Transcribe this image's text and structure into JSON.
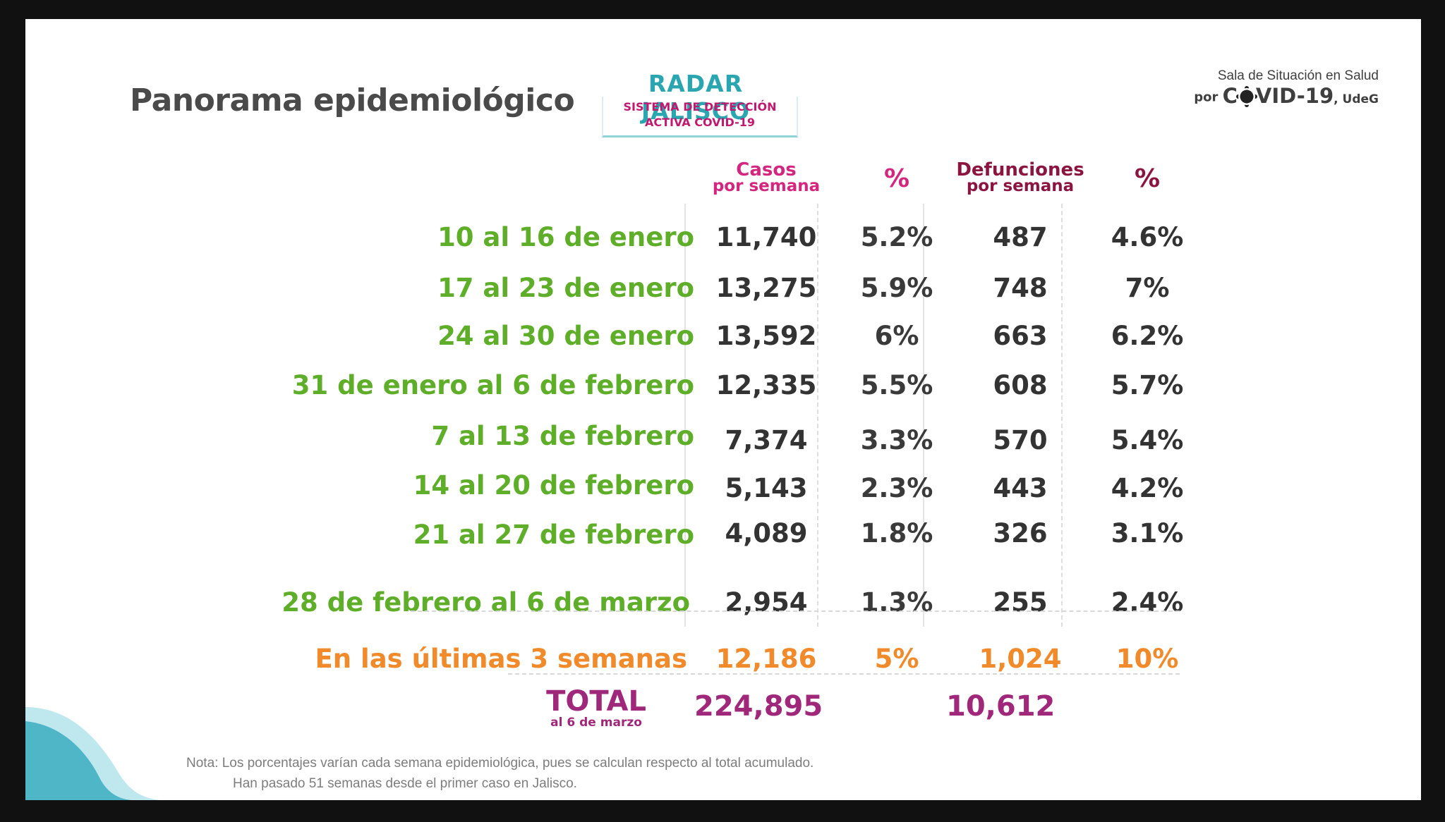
{
  "header": {
    "title": "Panorama epidemiológico",
    "radar": {
      "name": "RADAR JALISCO",
      "line1": "SISTEMA DE DETECCIÓN",
      "line2_prefix": "ACTIVA ",
      "line2_highlight": "COVID-19"
    },
    "sala": {
      "line1": "Sala de Situación en Salud",
      "por": "por ",
      "c": "C",
      "vid": "VID-19",
      "udeg": ", UdeG"
    }
  },
  "table": {
    "columns": {
      "casos_main": "Casos",
      "casos_sub": "por semana",
      "pct1": "%",
      "def_main": "Defunciones",
      "def_sub": "por semana",
      "pct2": "%"
    },
    "rows": [
      {
        "label": "10 al 16 de enero",
        "casos": "11,740",
        "pct_casos": "5.2%",
        "defunciones": "487",
        "pct_def": "4.6%"
      },
      {
        "label": "17 al 23 de enero",
        "casos": "13,275",
        "pct_casos": "5.9%",
        "defunciones": "748",
        "pct_def": "7%"
      },
      {
        "label": "24 al 30 de enero",
        "casos": "13,592",
        "pct_casos": "6%",
        "defunciones": "663",
        "pct_def": "6.2%"
      },
      {
        "label": "31 de enero al 6 de febrero",
        "casos": "12,335",
        "pct_casos": "5.5%",
        "defunciones": "608",
        "pct_def": "5.7%"
      },
      {
        "label": "7 al 13 de febrero",
        "casos": "7,374",
        "pct_casos": "3.3%",
        "defunciones": "570",
        "pct_def": "5.4%"
      },
      {
        "label": "14 al 20 de febrero",
        "casos": "5,143",
        "pct_casos": "2.3%",
        "defunciones": "443",
        "pct_def": "4.2%"
      },
      {
        "label": "21 al 27 de febrero",
        "casos": "4,089",
        "pct_casos": "1.8%",
        "defunciones": "326",
        "pct_def": "3.1%"
      },
      {
        "label": "28 de febrero al 6 de marzo",
        "casos": "2,954",
        "pct_casos": "1.3%",
        "defunciones": "255",
        "pct_def": "2.4%"
      }
    ],
    "summary": {
      "label": "En las últimas 3 semanas",
      "casos": "12,186",
      "pct_casos": "5%",
      "defunciones": "1,024",
      "pct_def": "10%"
    },
    "total": {
      "label": "TOTAL",
      "sublabel": "al 6 de marzo",
      "casos": "224,895",
      "defunciones": "10,612"
    }
  },
  "note": {
    "line1": "Nota: Los porcentajes varían cada semana epidemiológica, pues se calculan respecto al total acumulado.",
    "line2": "Han pasado 51 semanas desde el primer caso en Jalisco."
  },
  "colors": {
    "week_label": "#5fae29",
    "summary": "#f08a2a",
    "total": "#a0287a",
    "header_pink": "#d4267e",
    "header_dark": "#8b1540",
    "radar_teal": "#2aa6b0"
  }
}
